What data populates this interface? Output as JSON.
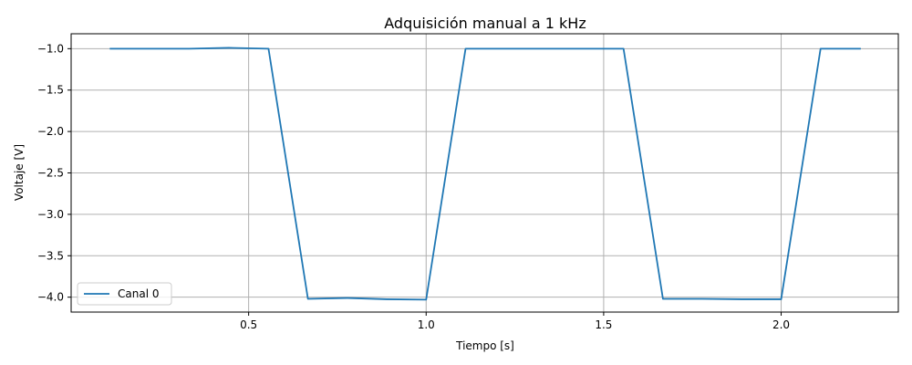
{
  "chart_data": {
    "type": "line",
    "title": "Adquisición manual a 1 kHz",
    "xlabel": "Tiempo [s]",
    "ylabel": "Voltaje [V]",
    "xlim": [
      0.0,
      2.33
    ],
    "ylim": [
      -4.18,
      -0.82
    ],
    "xticks": [
      0.5,
      1.0,
      1.5,
      2.0
    ],
    "xtick_labels": [
      "0.5",
      "1.0",
      "1.5",
      "2.0"
    ],
    "yticks": [
      -1.0,
      -1.5,
      -2.0,
      -2.5,
      -3.0,
      -3.5,
      -4.0
    ],
    "ytick_labels": [
      "−1.0",
      "−1.5",
      "−2.0",
      "−2.5",
      "−3.0",
      "−3.5",
      "−4.0"
    ],
    "grid": true,
    "legend_position": "lower-left",
    "series": [
      {
        "name": "Canal 0",
        "color": "#1f77b4",
        "x": [
          0.111,
          0.222,
          0.333,
          0.444,
          0.556,
          0.667,
          0.778,
          0.889,
          1.0,
          1.111,
          1.222,
          1.333,
          1.444,
          1.556,
          1.667,
          1.778,
          1.889,
          2.0,
          2.111,
          2.222
        ],
        "y": [
          -1.0,
          -1.0,
          -1.0,
          -0.99,
          -1.0,
          -4.02,
          -4.01,
          -4.025,
          -4.03,
          -1.0,
          -1.0,
          -1.0,
          -1.0,
          -1.0,
          -4.02,
          -4.02,
          -4.025,
          -4.025,
          -1.0,
          -1.0
        ]
      }
    ]
  }
}
